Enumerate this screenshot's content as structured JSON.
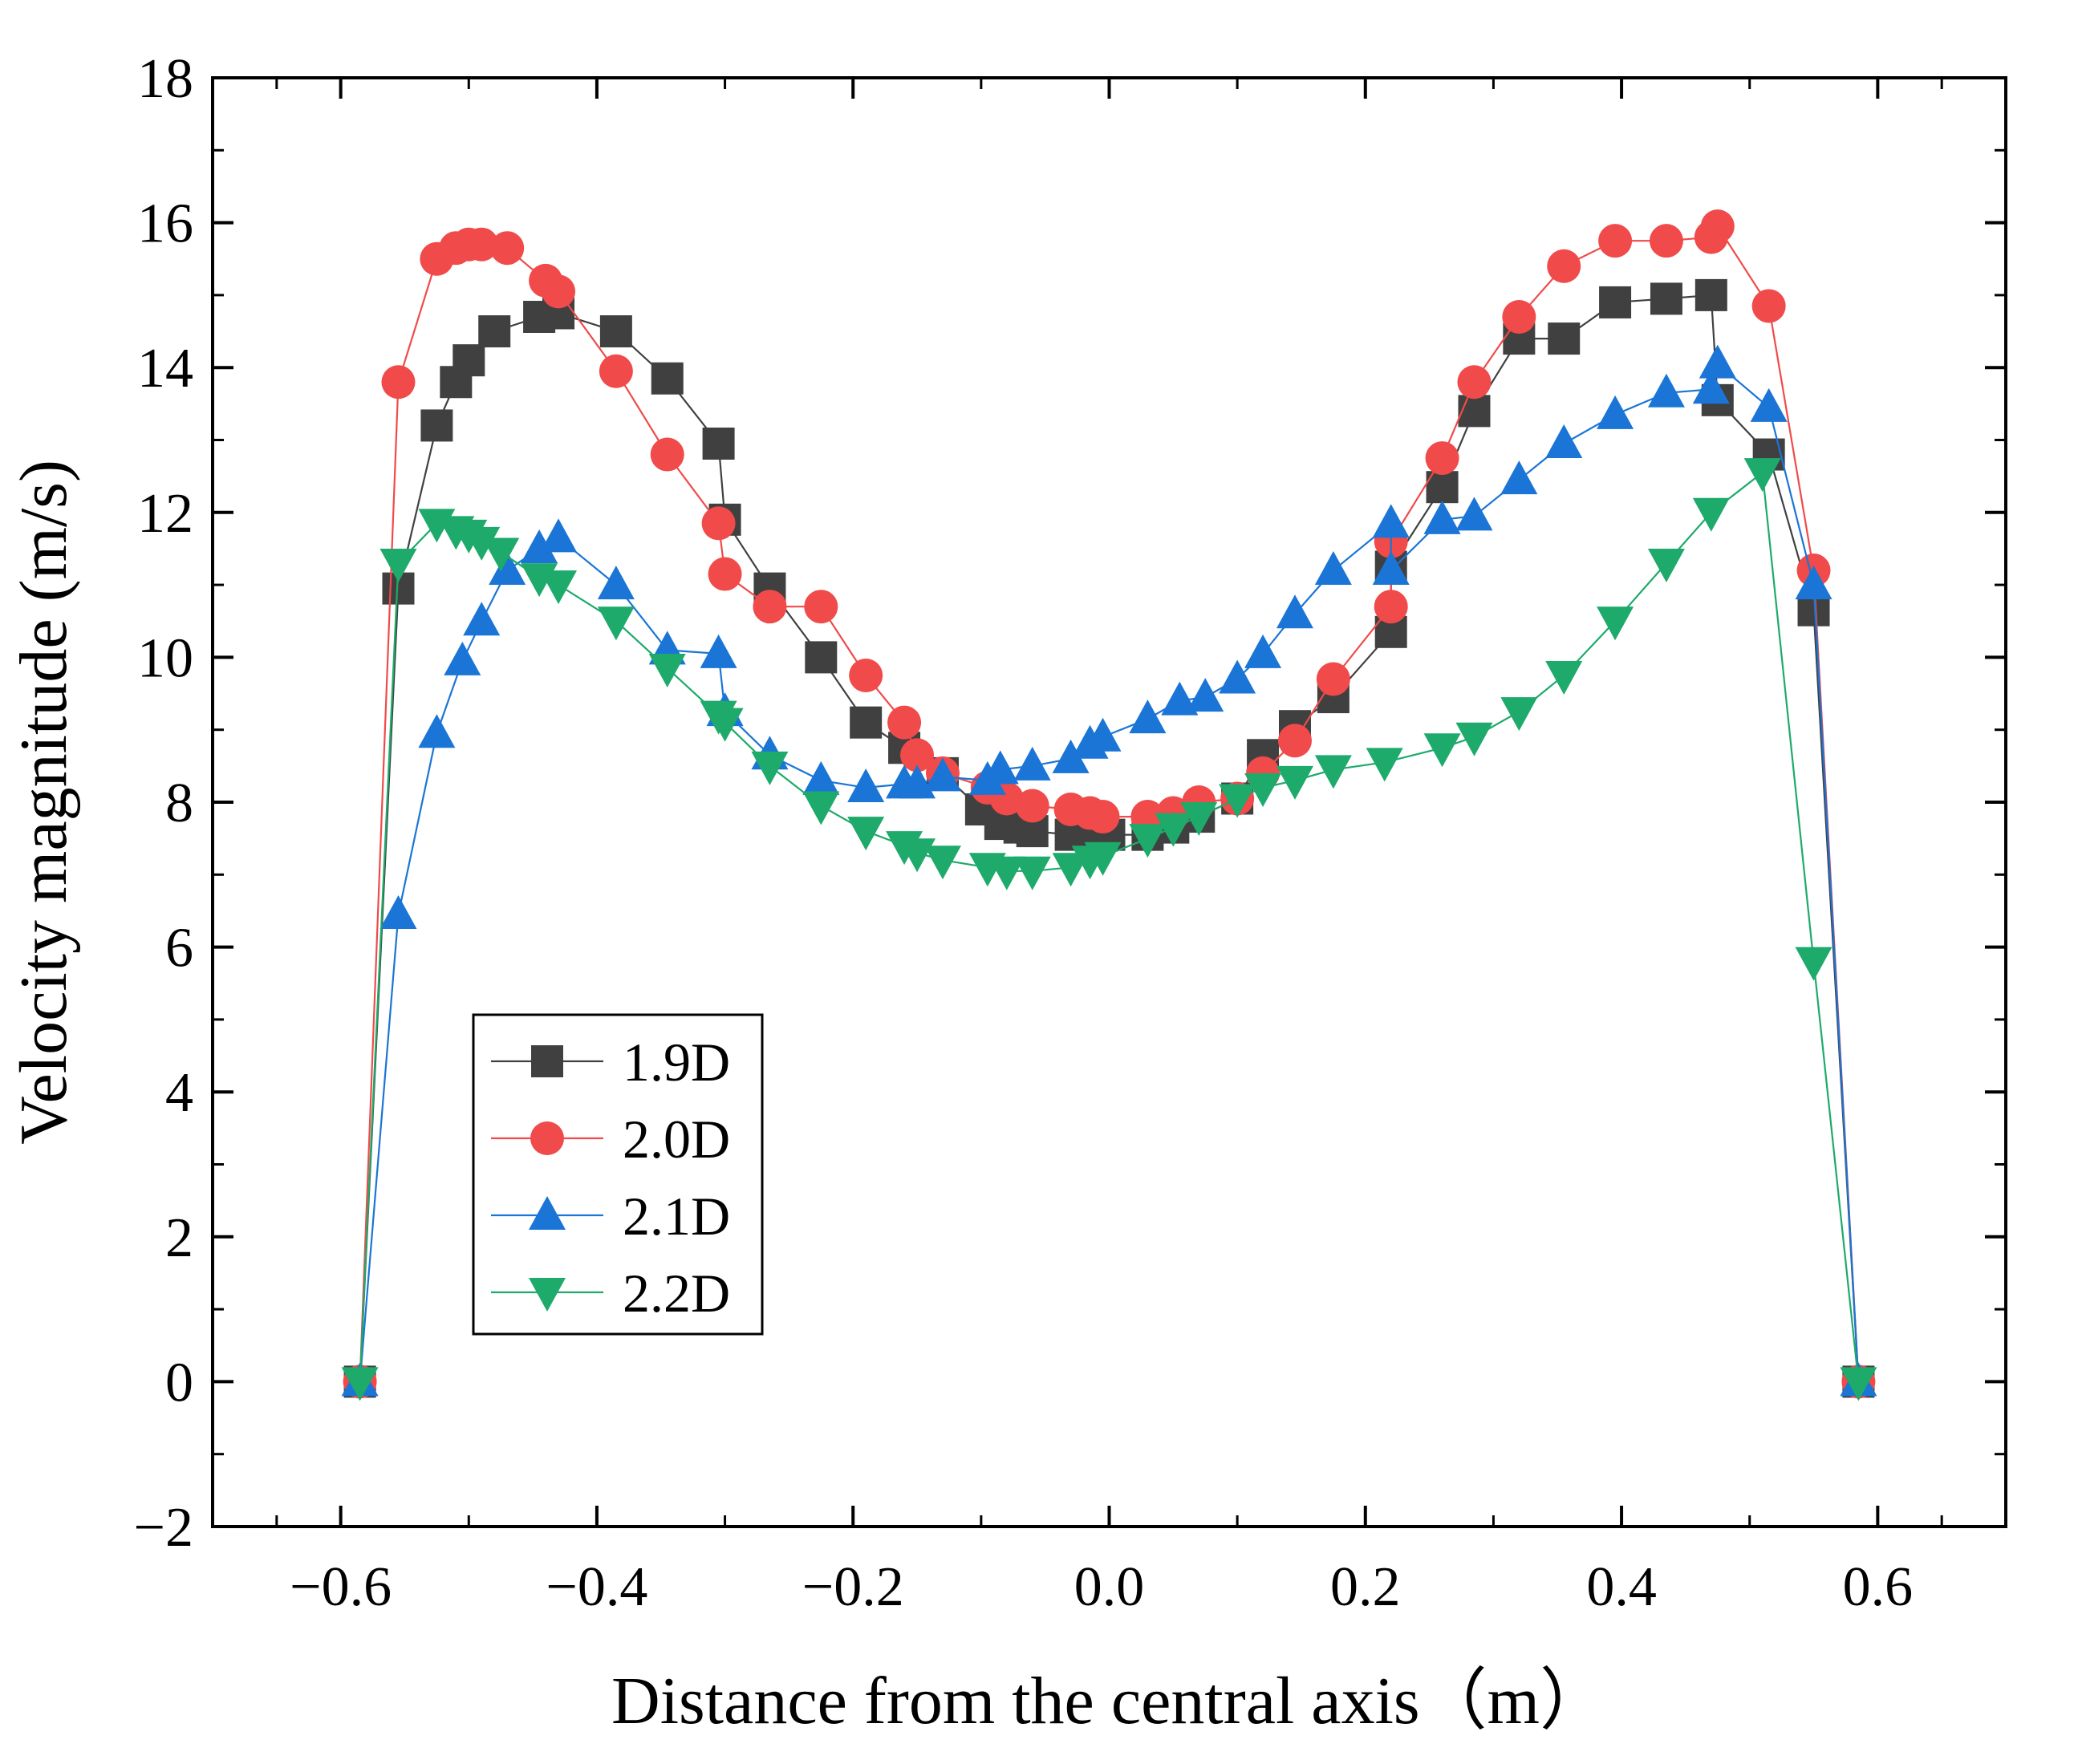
{
  "chart_data": {
    "type": "scatter",
    "title": "",
    "xlabel": "Distance from the central axis（m）",
    "ylabel": "Velocity magnitude (m/s)",
    "xlim": [
      -0.7,
      0.7
    ],
    "ylim": [
      -2,
      18
    ],
    "x_ticks": [
      -0.6,
      -0.4,
      -0.2,
      0.0,
      0.2,
      0.4,
      0.6
    ],
    "x_tick_labels": [
      "−0.6",
      "−0.4",
      "−0.2",
      "0.0",
      "0.2",
      "0.4",
      "0.6"
    ],
    "y_ticks": [
      -2,
      0,
      2,
      4,
      6,
      8,
      10,
      12,
      14,
      16,
      18
    ],
    "y_tick_labels": [
      "−2",
      "0",
      "2",
      "4",
      "6",
      "8",
      "10",
      "12",
      "14",
      "16",
      "18"
    ],
    "grid": false,
    "legend_position": "lower-left",
    "series": [
      {
        "name": "1.9D",
        "marker": "square",
        "marker_color": "#404040",
        "line_color": "#404040",
        "points": [
          [
            -0.585,
            0
          ],
          [
            -0.555,
            10.95
          ],
          [
            -0.525,
            13.2
          ],
          [
            -0.51,
            13.8
          ],
          [
            -0.5,
            14.1
          ],
          [
            -0.48,
            14.5
          ],
          [
            -0.445,
            14.7
          ],
          [
            -0.43,
            14.75
          ],
          [
            -0.385,
            14.5
          ],
          [
            -0.345,
            13.85
          ],
          [
            -0.305,
            12.95
          ],
          [
            -0.3,
            11.9
          ],
          [
            -0.265,
            10.95
          ],
          [
            -0.225,
            10.0
          ],
          [
            -0.19,
            9.1
          ],
          [
            -0.16,
            8.75
          ],
          [
            -0.13,
            8.4
          ],
          [
            -0.1,
            7.9
          ],
          [
            -0.085,
            7.7
          ],
          [
            -0.07,
            7.65
          ],
          [
            -0.06,
            7.6
          ],
          [
            -0.03,
            7.55
          ],
          [
            -0.015,
            7.6
          ],
          [
            0.0,
            7.55
          ],
          [
            0.03,
            7.55
          ],
          [
            0.05,
            7.65
          ],
          [
            0.07,
            7.8
          ],
          [
            0.1,
            8.05
          ],
          [
            0.12,
            8.65
          ],
          [
            0.145,
            9.05
          ],
          [
            0.175,
            9.45
          ],
          [
            0.22,
            10.35
          ],
          [
            0.22,
            11.25
          ],
          [
            0.26,
            12.35
          ],
          [
            0.285,
            13.4
          ],
          [
            0.32,
            14.4
          ],
          [
            0.355,
            14.4
          ],
          [
            0.395,
            14.9
          ],
          [
            0.435,
            14.95
          ],
          [
            0.47,
            15.0
          ],
          [
            0.475,
            13.55
          ],
          [
            0.515,
            12.8
          ],
          [
            0.55,
            10.65
          ],
          [
            0.585,
            0
          ]
        ]
      },
      {
        "name": "2.0D",
        "marker": "circle",
        "marker_color": "#f04a4a",
        "line_color": "#f04a4a",
        "points": [
          [
            -0.585,
            0
          ],
          [
            -0.555,
            13.8
          ],
          [
            -0.525,
            15.5
          ],
          [
            -0.51,
            15.65
          ],
          [
            -0.5,
            15.7
          ],
          [
            -0.49,
            15.7
          ],
          [
            -0.47,
            15.65
          ],
          [
            -0.44,
            15.2
          ],
          [
            -0.43,
            15.05
          ],
          [
            -0.385,
            13.95
          ],
          [
            -0.345,
            12.8
          ],
          [
            -0.305,
            11.85
          ],
          [
            -0.3,
            11.15
          ],
          [
            -0.265,
            10.7
          ],
          [
            -0.225,
            10.7
          ],
          [
            -0.19,
            9.75
          ],
          [
            -0.16,
            9.1
          ],
          [
            -0.15,
            8.65
          ],
          [
            -0.13,
            8.4
          ],
          [
            -0.095,
            8.2
          ],
          [
            -0.08,
            8.05
          ],
          [
            -0.06,
            7.95
          ],
          [
            -0.03,
            7.9
          ],
          [
            -0.015,
            7.85
          ],
          [
            -0.005,
            7.8
          ],
          [
            0.03,
            7.8
          ],
          [
            0.05,
            7.85
          ],
          [
            0.07,
            8.0
          ],
          [
            0.1,
            8.05
          ],
          [
            0.12,
            8.4
          ],
          [
            0.145,
            8.85
          ],
          [
            0.175,
            9.7
          ],
          [
            0.22,
            10.7
          ],
          [
            0.22,
            11.6
          ],
          [
            0.26,
            12.75
          ],
          [
            0.285,
            13.8
          ],
          [
            0.32,
            14.7
          ],
          [
            0.355,
            15.4
          ],
          [
            0.395,
            15.75
          ],
          [
            0.435,
            15.75
          ],
          [
            0.47,
            15.8
          ],
          [
            0.475,
            15.95
          ],
          [
            0.515,
            14.85
          ],
          [
            0.55,
            11.2
          ],
          [
            0.585,
            0
          ]
        ]
      },
      {
        "name": "2.1D",
        "marker": "triangle-up",
        "marker_color": "#1a75d6",
        "line_color": "#1a75d6",
        "points": [
          [
            -0.585,
            0
          ],
          [
            -0.555,
            6.45
          ],
          [
            -0.525,
            8.95
          ],
          [
            -0.505,
            9.95
          ],
          [
            -0.49,
            10.5
          ],
          [
            -0.47,
            11.2
          ],
          [
            -0.445,
            11.5
          ],
          [
            -0.43,
            11.65
          ],
          [
            -0.385,
            11.0
          ],
          [
            -0.345,
            10.1
          ],
          [
            -0.305,
            10.05
          ],
          [
            -0.3,
            9.25
          ],
          [
            -0.265,
            8.65
          ],
          [
            -0.225,
            8.3
          ],
          [
            -0.19,
            8.2
          ],
          [
            -0.16,
            8.25
          ],
          [
            -0.15,
            8.25
          ],
          [
            -0.13,
            8.35
          ],
          [
            -0.095,
            8.3
          ],
          [
            -0.085,
            8.45
          ],
          [
            -0.06,
            8.5
          ],
          [
            -0.03,
            8.6
          ],
          [
            -0.015,
            8.8
          ],
          [
            -0.005,
            8.9
          ],
          [
            0.03,
            9.15
          ],
          [
            0.055,
            9.4
          ],
          [
            0.075,
            9.45
          ],
          [
            0.1,
            9.7
          ],
          [
            0.12,
            10.05
          ],
          [
            0.145,
            10.6
          ],
          [
            0.175,
            11.2
          ],
          [
            0.22,
            11.85
          ],
          [
            0.22,
            11.2
          ],
          [
            0.26,
            11.9
          ],
          [
            0.285,
            11.95
          ],
          [
            0.32,
            12.45
          ],
          [
            0.355,
            12.95
          ],
          [
            0.395,
            13.35
          ],
          [
            0.435,
            13.65
          ],
          [
            0.47,
            13.7
          ],
          [
            0.475,
            14.05
          ],
          [
            0.515,
            13.45
          ],
          [
            0.55,
            11.0
          ],
          [
            0.585,
            0
          ]
        ]
      },
      {
        "name": "2.2D",
        "marker": "triangle-down",
        "marker_color": "#1daa6a",
        "line_color": "#1daa6a",
        "points": [
          [
            -0.585,
            0
          ],
          [
            -0.555,
            11.3
          ],
          [
            -0.525,
            11.85
          ],
          [
            -0.51,
            11.75
          ],
          [
            -0.5,
            11.7
          ],
          [
            -0.49,
            11.6
          ],
          [
            -0.475,
            11.45
          ],
          [
            -0.445,
            11.1
          ],
          [
            -0.43,
            11.0
          ],
          [
            -0.385,
            10.5
          ],
          [
            -0.345,
            9.85
          ],
          [
            -0.305,
            9.2
          ],
          [
            -0.3,
            9.1
          ],
          [
            -0.265,
            8.5
          ],
          [
            -0.225,
            7.95
          ],
          [
            -0.19,
            7.6
          ],
          [
            -0.16,
            7.4
          ],
          [
            -0.15,
            7.3
          ],
          [
            -0.13,
            7.2
          ],
          [
            -0.095,
            7.1
          ],
          [
            -0.08,
            7.05
          ],
          [
            -0.06,
            7.05
          ],
          [
            -0.03,
            7.1
          ],
          [
            -0.015,
            7.2
          ],
          [
            -0.005,
            7.25
          ],
          [
            0.03,
            7.5
          ],
          [
            0.05,
            7.65
          ],
          [
            0.07,
            7.8
          ],
          [
            0.1,
            8.05
          ],
          [
            0.12,
            8.2
          ],
          [
            0.145,
            8.3
          ],
          [
            0.175,
            8.45
          ],
          [
            0.215,
            8.55
          ],
          [
            0.26,
            8.75
          ],
          [
            0.285,
            8.9
          ],
          [
            0.32,
            9.25
          ],
          [
            0.355,
            9.75
          ],
          [
            0.395,
            10.5
          ],
          [
            0.435,
            11.3
          ],
          [
            0.47,
            12.0
          ],
          [
            0.51,
            12.55
          ],
          [
            0.55,
            5.8
          ],
          [
            0.585,
            0
          ]
        ]
      }
    ]
  }
}
